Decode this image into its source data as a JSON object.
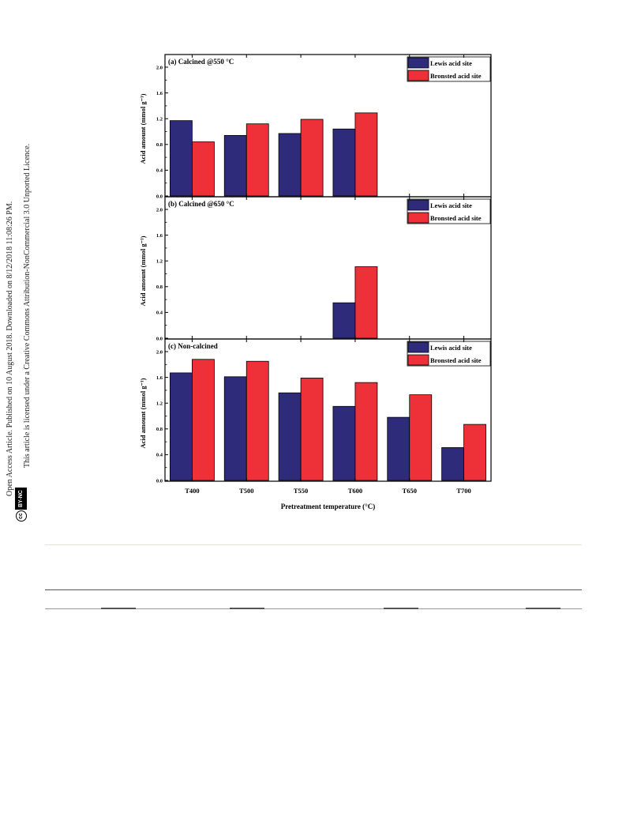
{
  "side_notes": {
    "line1": "Open Access Article. Published on 10 August 2018. Downloaded on 8/12/2018 11:08:26 PM.",
    "line2": "This article is licensed under a Creative Commons Attribution-NonCommercial 3.0 Unported Licence.",
    "badge_cc": "cc",
    "badge_license": "BY-NC"
  },
  "colors": {
    "lewis": "#2e2b7a",
    "bronsted": "#ee3138"
  },
  "chart_data": {
    "type": "bar",
    "xlabel": "Pretreatment temperature (°C)",
    "ylabel": "Acid amount (mmol g⁻¹)",
    "categories": [
      "T400",
      "T500",
      "T550",
      "T600",
      "T650",
      "T700"
    ],
    "ylim": [
      0,
      2.0
    ],
    "yticks": [
      "0.0",
      "0.4",
      "0.8",
      "1.2",
      "1.6",
      "2.0"
    ],
    "legend_placement": "top-right",
    "grid": false,
    "panels": [
      {
        "title": "(a) Calcined @550 °C",
        "series": [
          {
            "name": "Lewis acid site",
            "values": [
              1.17,
              0.94,
              0.97,
              1.04,
              null,
              null
            ]
          },
          {
            "name": "Bronsted acid site",
            "values": [
              0.84,
              1.12,
              1.19,
              1.29,
              null,
              null
            ]
          }
        ]
      },
      {
        "title": "(b) Calcined @650 °C",
        "series": [
          {
            "name": "Lewis acid site",
            "values": [
              null,
              null,
              null,
              0.55,
              null,
              null
            ]
          },
          {
            "name": "Bronsted acid site",
            "values": [
              null,
              null,
              null,
              1.11,
              null,
              null
            ]
          }
        ]
      },
      {
        "title": "(c) Non-calcined",
        "series": [
          {
            "name": "Lewis acid site",
            "values": [
              1.67,
              1.61,
              1.36,
              1.15,
              0.98,
              0.51
            ]
          },
          {
            "name": "Bronsted acid site",
            "values": [
              1.88,
              1.85,
              1.59,
              1.52,
              1.33,
              0.87
            ]
          }
        ]
      }
    ]
  }
}
